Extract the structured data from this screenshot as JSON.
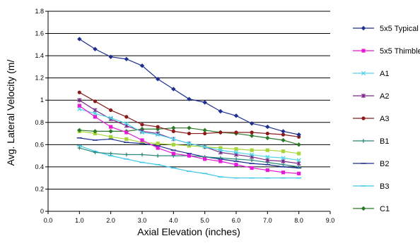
{
  "chart_data": {
    "type": "line",
    "title": "",
    "xlabel": "Axial Elevation (inches)",
    "ylabel": "Avg. Lateral Velocity (m/",
    "xlim": [
      0.0,
      9.0
    ],
    "ylim": [
      0,
      1.8
    ],
    "x_ticks": [
      "0.0",
      "1.0",
      "2.0",
      "3.0",
      "4.0",
      "5.0",
      "6.0",
      "7.0",
      "8.0",
      "9.0"
    ],
    "y_ticks": [
      "0",
      "0.2",
      "0.4",
      "0.6",
      "0.8",
      "1",
      "1.2",
      "1.4",
      "1.6",
      "1.8"
    ],
    "grid": "horizontal",
    "legend_position": "right",
    "x": [
      1.0,
      1.5,
      2.0,
      2.5,
      3.0,
      3.5,
      4.0,
      4.5,
      5.0,
      5.5,
      6.0,
      6.5,
      7.0,
      7.5,
      8.0
    ],
    "series": [
      {
        "name": "5x5 Typical",
        "color": "#1f2f8f",
        "marker": "diamond",
        "values": [
          1.55,
          1.46,
          1.39,
          1.37,
          1.31,
          1.19,
          1.1,
          1.01,
          0.98,
          0.9,
          0.86,
          0.79,
          0.76,
          0.72,
          0.69
        ]
      },
      {
        "name": "5x5 Thimble",
        "color": "#e51ad6",
        "marker": "square",
        "values": [
          0.95,
          0.85,
          0.76,
          0.71,
          0.64,
          0.57,
          0.52,
          0.5,
          0.47,
          0.45,
          0.42,
          0.39,
          0.37,
          0.35,
          0.34
        ]
      },
      {
        "name": "A1",
        "color": "#4fd6e8",
        "marker": "x",
        "values": [
          0.92,
          0.88,
          0.84,
          0.79,
          0.71,
          0.69,
          0.65,
          0.61,
          0.58,
          0.55,
          0.53,
          0.51,
          0.49,
          0.48,
          0.46
        ]
      },
      {
        "name": "A2",
        "color": "#7a2a8a",
        "marker": "star",
        "values": [
          1.0,
          0.91,
          0.83,
          0.77,
          0.72,
          0.7,
          0.65,
          0.61,
          0.58,
          0.53,
          0.51,
          0.49,
          0.46,
          0.45,
          0.43
        ]
      },
      {
        "name": "A3",
        "color": "#8b1a1a",
        "marker": "circle",
        "values": [
          1.07,
          0.99,
          0.91,
          0.85,
          0.78,
          0.76,
          0.72,
          0.7,
          0.7,
          0.71,
          0.71,
          0.71,
          0.7,
          0.69,
          0.67
        ]
      },
      {
        "name": "B1",
        "color": "#2a8a7a",
        "marker": "plus",
        "values": [
          0.57,
          0.53,
          0.52,
          0.51,
          0.51,
          0.5,
          0.5,
          0.5,
          0.49,
          0.48,
          0.47,
          0.46,
          0.44,
          0.42,
          0.4
        ]
      },
      {
        "name": "B2",
        "color": "#1f2f8f",
        "marker": "dash",
        "values": [
          0.66,
          0.64,
          0.65,
          0.62,
          0.61,
          0.59,
          0.55,
          0.52,
          0.49,
          0.47,
          0.45,
          0.43,
          0.42,
          0.4,
          0.39
        ]
      },
      {
        "name": "B3",
        "color": "#3cc6e8",
        "marker": "dash",
        "values": [
          0.59,
          0.54,
          0.5,
          0.47,
          0.44,
          0.42,
          0.39,
          0.36,
          0.34,
          0.31,
          0.3,
          0.3,
          0.3,
          0.3,
          0.3
        ]
      },
      {
        "name": "C1",
        "color": "#2a7a2a",
        "marker": "diamond",
        "values": [
          0.73,
          0.72,
          0.72,
          0.72,
          0.74,
          0.74,
          0.75,
          0.75,
          0.73,
          0.71,
          0.7,
          0.68,
          0.66,
          0.64,
          0.6
        ]
      },
      {
        "name": "",
        "color": "#a8d63a",
        "marker": "square",
        "values": [
          0.72,
          0.7,
          0.67,
          0.65,
          0.62,
          0.61,
          0.6,
          0.59,
          0.58,
          0.57,
          0.56,
          0.55,
          0.55,
          0.54,
          0.52
        ]
      }
    ]
  }
}
